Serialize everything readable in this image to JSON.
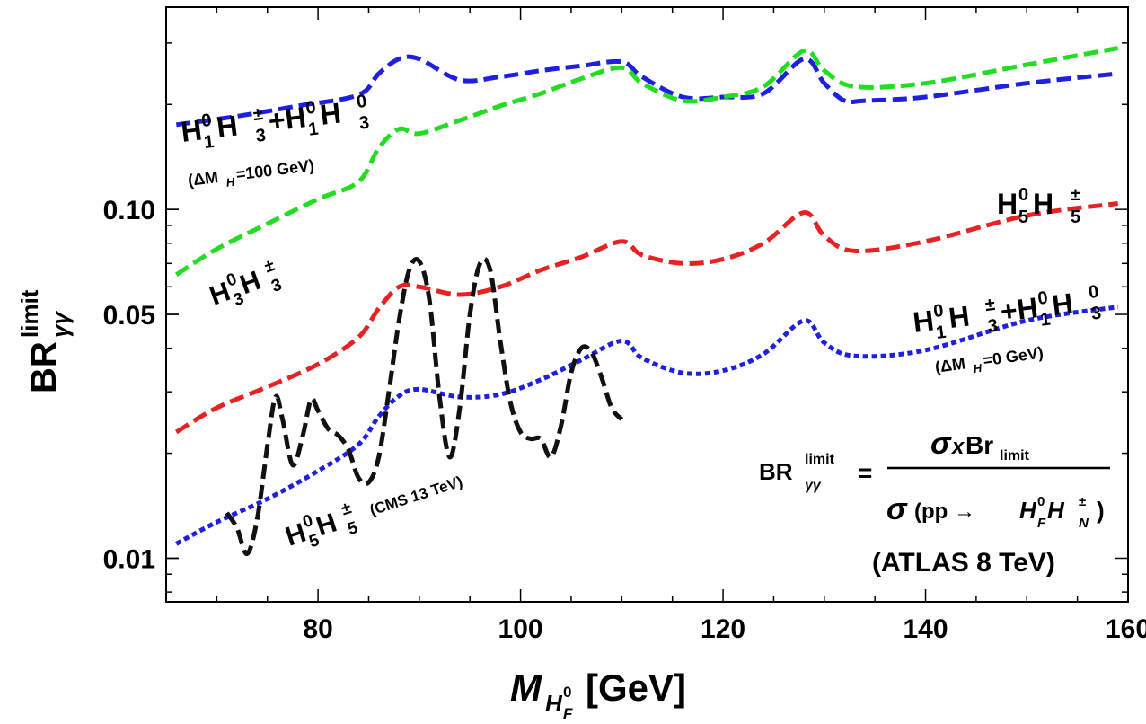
{
  "chart_data": {
    "type": "line",
    "title": "",
    "xlabel": {
      "main": "M",
      "sub": "H",
      "subsup": "0",
      "subsub": "F",
      "unit": "[GeV]"
    },
    "ylabel": {
      "main": "BR",
      "sup": "limit",
      "sub": "γγ"
    },
    "y_scale": "log",
    "xlim": [
      65,
      160
    ],
    "ylim": [
      0.0075,
      0.38
    ],
    "x_ticks": [
      {
        "value": 80,
        "label": "80"
      },
      {
        "value": 100,
        "label": "100"
      },
      {
        "value": 120,
        "label": "120"
      },
      {
        "value": 140,
        "label": "140"
      },
      {
        "value": 160,
        "label": "160"
      }
    ],
    "y_ticks": [
      {
        "value": 0.01,
        "label": "0.01"
      },
      {
        "value": 0.05,
        "label": "0.05"
      },
      {
        "value": 0.1,
        "label": "0.10"
      }
    ],
    "grid": false,
    "series": [
      {
        "color": "#1f1fe0",
        "style": "dashed",
        "x": [
          66,
          72,
          78,
          84,
          86,
          88,
          90,
          94,
          98,
          102,
          106,
          110,
          112,
          116,
          120,
          124,
          128,
          130,
          132,
          134,
          140,
          150,
          159
        ],
        "y": [
          0.175,
          0.185,
          0.198,
          0.213,
          0.245,
          0.27,
          0.27,
          0.235,
          0.24,
          0.25,
          0.258,
          0.265,
          0.24,
          0.21,
          0.21,
          0.215,
          0.27,
          0.23,
          0.205,
          0.205,
          0.21,
          0.23,
          0.245
        ]
      },
      {
        "color": "#22dd22",
        "style": "dashed",
        "x": [
          66,
          70,
          75,
          80,
          84,
          86,
          88,
          90,
          94,
          98,
          102,
          106,
          110,
          112,
          116,
          120,
          124,
          128,
          130,
          133,
          140,
          150,
          159
        ],
        "y": [
          0.065,
          0.077,
          0.091,
          0.107,
          0.12,
          0.15,
          0.17,
          0.165,
          0.18,
          0.198,
          0.215,
          0.237,
          0.255,
          0.23,
          0.205,
          0.21,
          0.225,
          0.285,
          0.25,
          0.225,
          0.23,
          0.26,
          0.29
        ]
      },
      {
        "color": "#e62222",
        "style": "dashed",
        "x": [
          66,
          70,
          75,
          80,
          84,
          86,
          88,
          90,
          94,
          98,
          102,
          106,
          110,
          112,
          116,
          120,
          124,
          128,
          130,
          133,
          140,
          150,
          159
        ],
        "y": [
          0.023,
          0.027,
          0.031,
          0.036,
          0.043,
          0.052,
          0.06,
          0.06,
          0.057,
          0.06,
          0.067,
          0.073,
          0.081,
          0.074,
          0.07,
          0.072,
          0.08,
          0.098,
          0.084,
          0.076,
          0.081,
          0.096,
          0.104
        ]
      },
      {
        "color": "#1f1fe0",
        "style": "dotted",
        "x": [
          66,
          70,
          75,
          80,
          84,
          86,
          88,
          90,
          94,
          98,
          102,
          106,
          110,
          112,
          116,
          120,
          124,
          128,
          130,
          133,
          140,
          150,
          159
        ],
        "y": [
          0.011,
          0.0127,
          0.0148,
          0.0178,
          0.0212,
          0.0255,
          0.0292,
          0.0305,
          0.029,
          0.0295,
          0.0325,
          0.037,
          0.042,
          0.0375,
          0.034,
          0.0345,
          0.0385,
          0.048,
          0.0415,
          0.038,
          0.0395,
          0.048,
          0.0525
        ]
      },
      {
        "color": "#111111",
        "style": "dashed",
        "x": [
          71,
          72,
          73,
          74,
          75,
          75.8,
          76.5,
          77.5,
          78.5,
          79.3,
          80,
          81,
          82,
          83,
          84,
          85,
          86,
          87,
          88,
          89,
          90,
          91,
          92,
          93,
          94,
          95,
          96,
          97,
          98,
          99,
          100,
          101,
          102,
          103,
          104,
          105,
          106,
          107,
          108,
          109,
          110
        ],
        "y": [
          0.0135,
          0.0122,
          0.0103,
          0.013,
          0.021,
          0.029,
          0.025,
          0.0185,
          0.0225,
          0.0285,
          0.0265,
          0.0235,
          0.0225,
          0.0205,
          0.017,
          0.0165,
          0.0195,
          0.03,
          0.048,
          0.067,
          0.071,
          0.055,
          0.029,
          0.0195,
          0.027,
          0.05,
          0.07,
          0.067,
          0.042,
          0.028,
          0.023,
          0.022,
          0.022,
          0.0195,
          0.024,
          0.034,
          0.04,
          0.039,
          0.033,
          0.027,
          0.025
        ]
      }
    ],
    "annotations": {
      "blue_upper_label": {
        "parts": [
          "H",
          "0",
          "1",
          " H",
          "±",
          "3",
          "+H",
          "0",
          "1",
          " H",
          "0",
          "3"
        ]
      },
      "blue_upper_sub": "(ΔM",
      "blue_upper_sub2": "H",
      "blue_upper_sub3": "=100 GeV)",
      "green_label": {
        "a": "H",
        "b": "0",
        "c": "3",
        "d": " H",
        "e": "±",
        "f": "3"
      },
      "red_label": {
        "a": "H",
        "b": "0",
        "c": "5",
        "d": " H",
        "e": "±",
        "f": "5"
      },
      "blue_lower_sub": "(ΔM",
      "blue_lower_sub2": "H",
      "blue_lower_sub3": "=0 GeV)",
      "black_label": {
        "a": "H",
        "b": "0",
        "c": "5",
        "d": " H",
        "e": "±",
        "f": "5"
      },
      "black_sub": "(CMS 13 TeV)",
      "formula_lhs": "BR",
      "formula_lhs_sup": "limit",
      "formula_lhs_sub": "γγ",
      "formula_eq": "=",
      "formula_num_sigma": "σ",
      "formula_num_x": "x",
      "formula_num_br": "Br",
      "formula_num_sub": "limit",
      "formula_den_sigma": "σ",
      "formula_den_pp": "(pp → ",
      "formula_den_h1": "H",
      "formula_den_h1_sup": "0",
      "formula_den_h1_sub": "F",
      "formula_den_h2": " H",
      "formula_den_h2_sup": "±",
      "formula_den_h2_sub": "N",
      "formula_den_close": ")",
      "atlas_note": "(ATLAS 8 TeV)"
    }
  }
}
